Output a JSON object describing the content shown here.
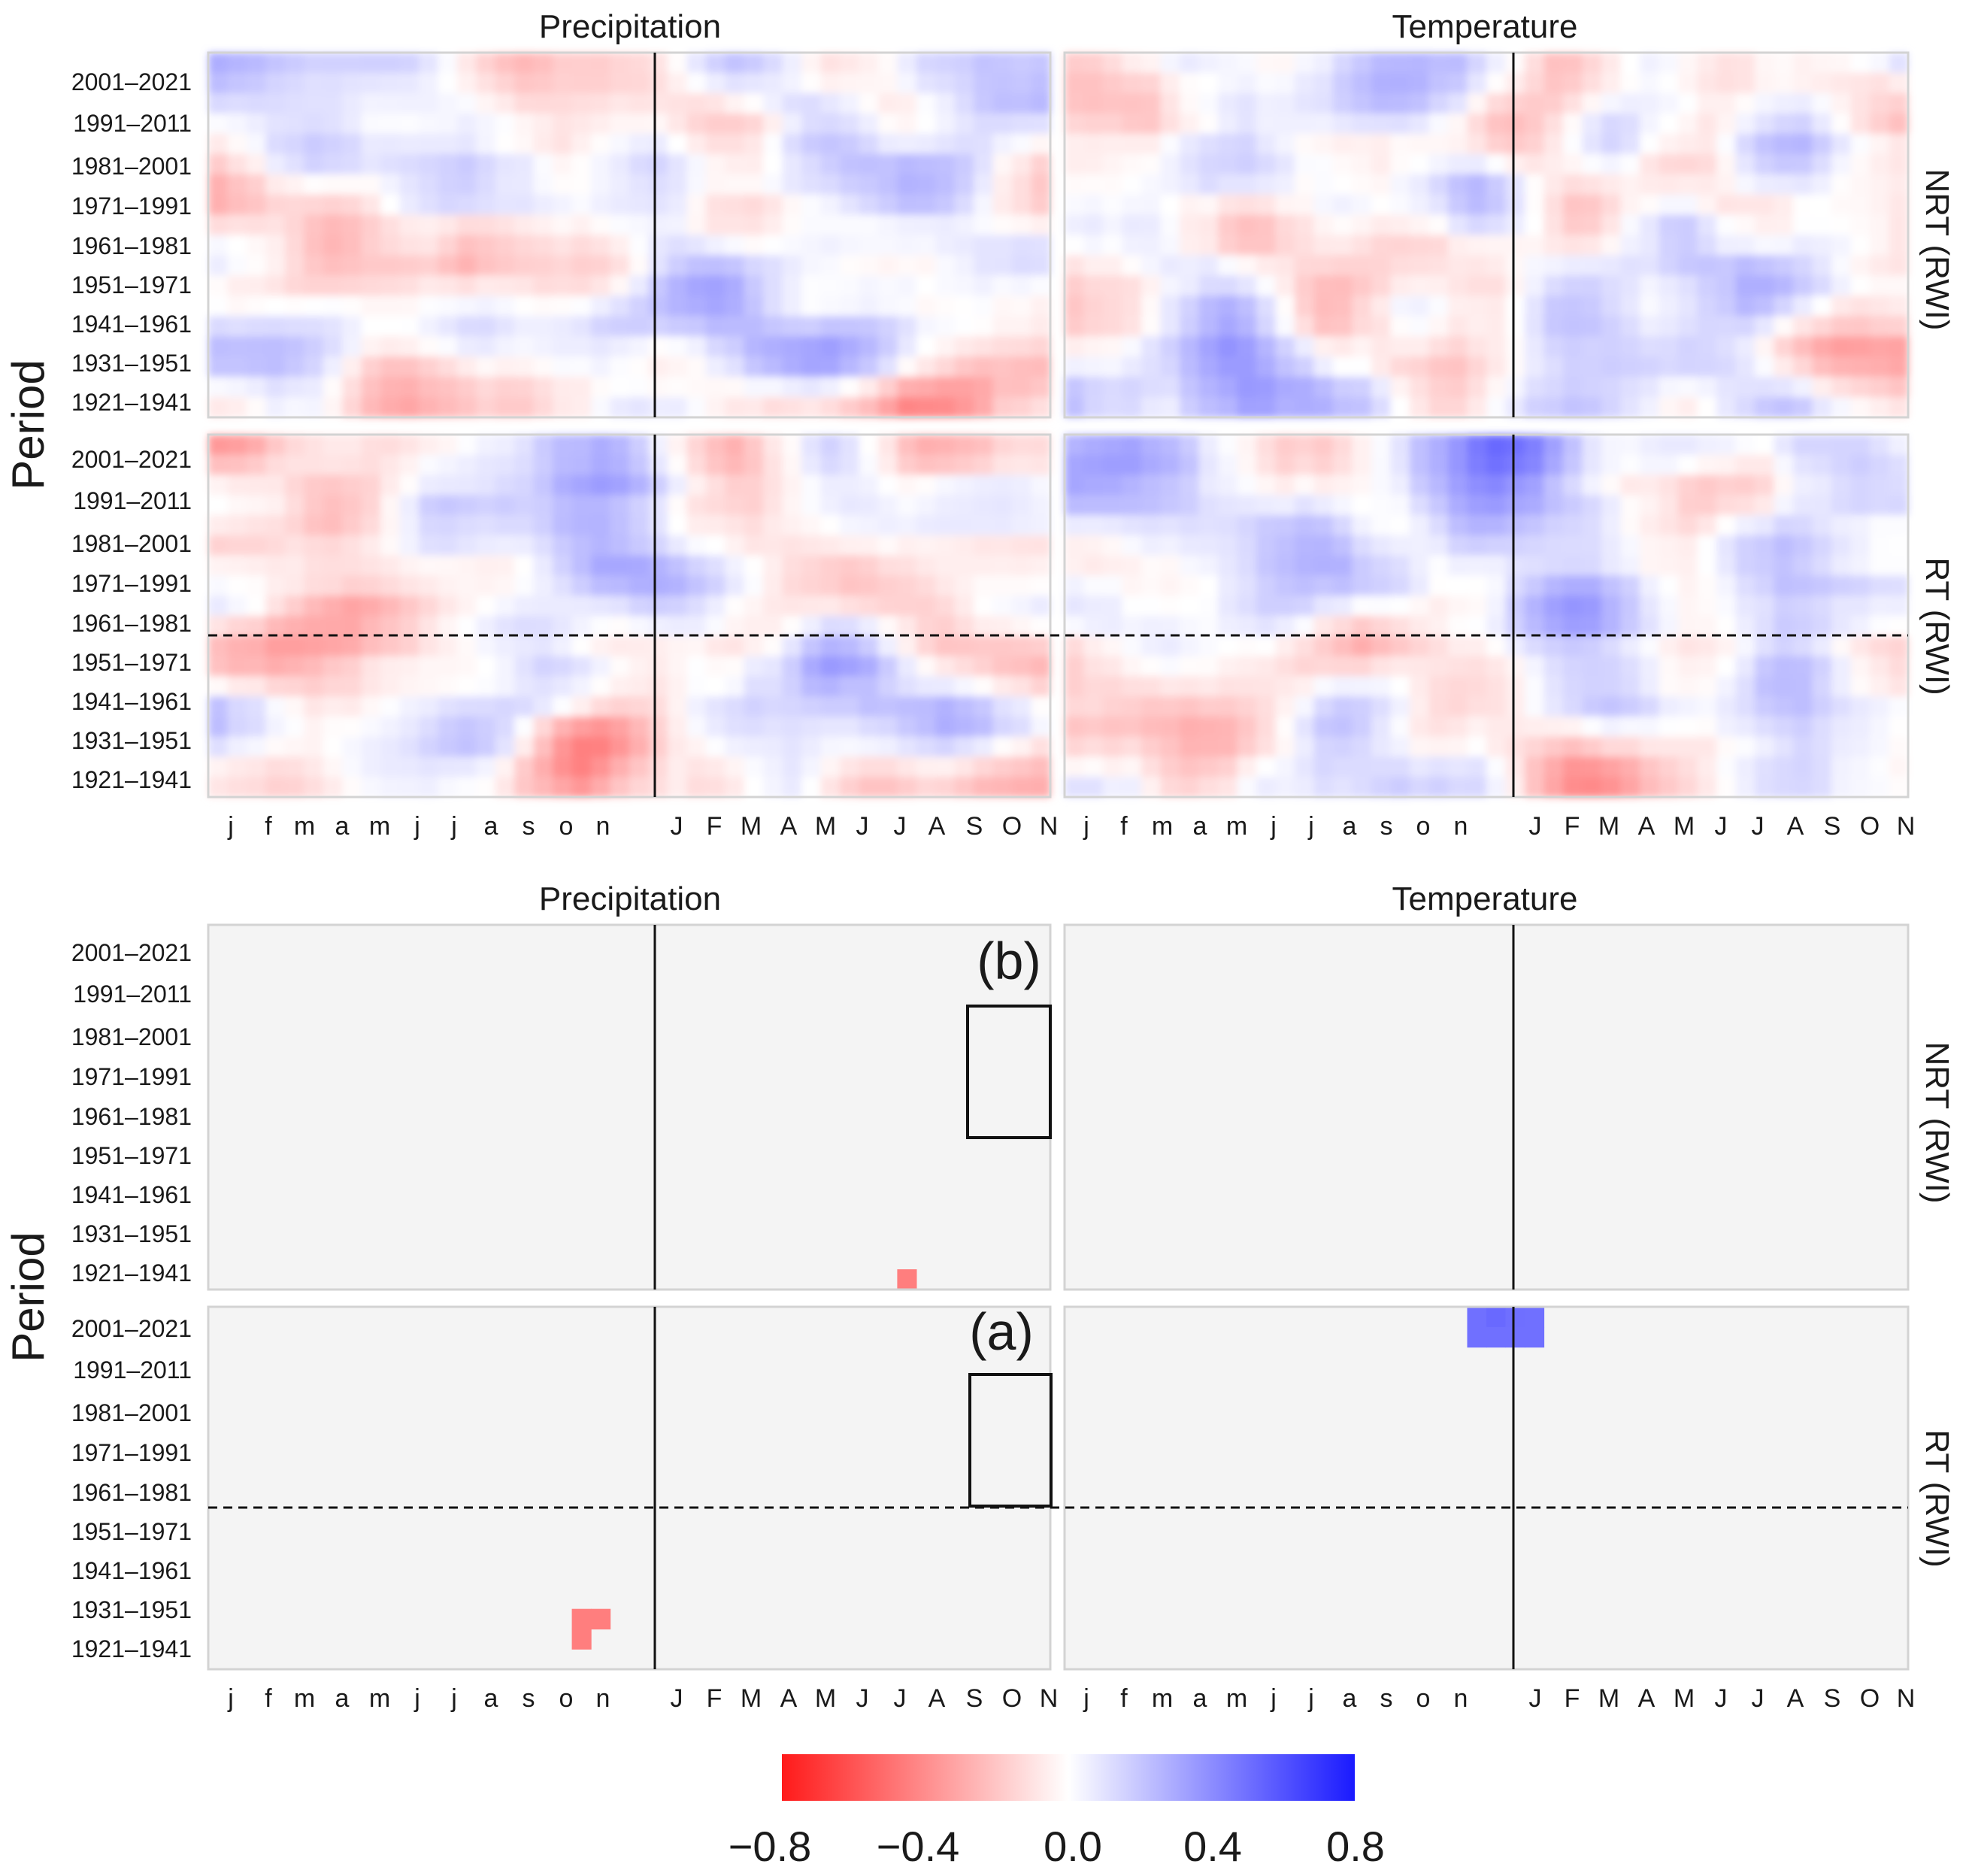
{
  "chart_data": {
    "type": "heatmap",
    "title": "",
    "value_range": [
      -0.8,
      0.8
    ],
    "colorbar": {
      "ticks": [
        "−0.8",
        "−0.4",
        "0.0",
        "0.4",
        "0.8"
      ],
      "low_color": "#ff1a1a",
      "mid_color": "#ffffff",
      "high_color": "#1a1aff"
    },
    "y_label": "Period",
    "y_ticks": [
      "2001–2021",
      "1991–2011",
      "1981–2001",
      "1971–1991",
      "1961–1981",
      "1951–1971",
      "1941–1961",
      "1931–1951",
      "1921–1941"
    ],
    "x_ticks_prev_year": [
      "j",
      "f",
      "m",
      "a",
      "m",
      "j",
      "j",
      "a",
      "s",
      "o",
      "n"
    ],
    "x_ticks_curr_year": [
      "J",
      "F",
      "M",
      "A",
      "M",
      "J",
      "J",
      "A",
      "S",
      "O",
      "N"
    ],
    "column_titles": [
      "Precipitation",
      "Temperature"
    ],
    "row_titles": [
      "NRT (RWI)",
      "RT (RWI)"
    ],
    "blocks": [
      {
        "label": "",
        "mode": "all correlations",
        "series": "full"
      },
      {
        "label": "(b) / (a)",
        "mode": "significant correlations only",
        "series": "masked"
      }
    ],
    "annotations": {
      "top_label": "(b)",
      "bottom_label": "(a)"
    },
    "break_line_period": "1961–1981 / 1951–1971"
  },
  "colors": {
    "panel_bg_masked": "#f4f4f4",
    "panel_border": "#d3d3d3",
    "divider": "#111111"
  }
}
